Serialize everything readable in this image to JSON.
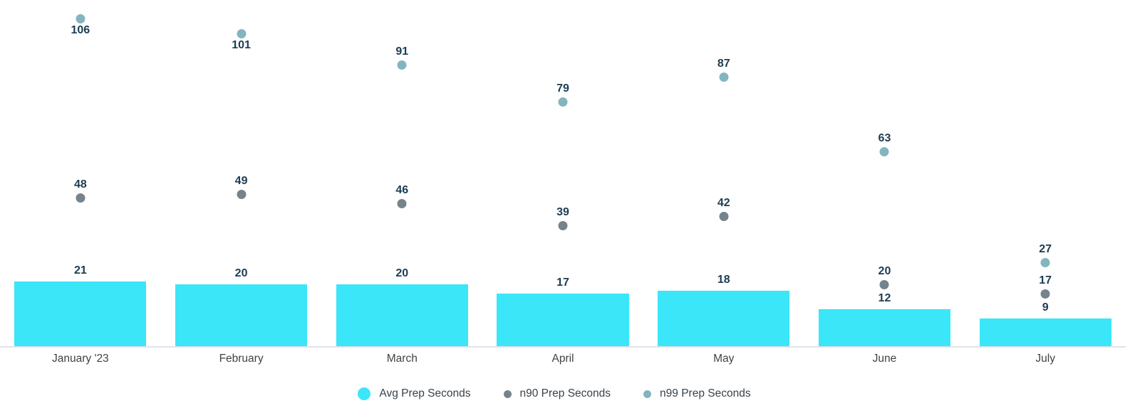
{
  "chart_data": {
    "type": "bar",
    "subtype": "bar-with-scatter-overlay",
    "categories": [
      "January '23",
      "February",
      "March",
      "April",
      "May",
      "June",
      "July"
    ],
    "series": [
      {
        "name": "Avg Prep Seconds",
        "mark": "bar",
        "color": "#3be6f8",
        "values": [
          21,
          20,
          20,
          17,
          18,
          12,
          9
        ]
      },
      {
        "name": "n90 Prep Seconds",
        "mark": "scatter",
        "color": "#75838d",
        "values": [
          48,
          49,
          46,
          39,
          42,
          20,
          17
        ]
      },
      {
        "name": "n99 Prep Seconds",
        "mark": "scatter",
        "color": "#83b5bf",
        "values": [
          106,
          101,
          91,
          79,
          87,
          63,
          27
        ]
      }
    ],
    "title": "",
    "xlabel": "",
    "ylabel": "",
    "ylim": [
      0,
      112
    ],
    "grid": false,
    "y_axis_visible": false,
    "legend_position": "bottom",
    "value_labels_visible": true,
    "value_label_color": "#1c3c52",
    "axis_tick_color": "#424242",
    "axis_line_color": "#e2e2eb",
    "legend_text_color": "#37424c"
  }
}
